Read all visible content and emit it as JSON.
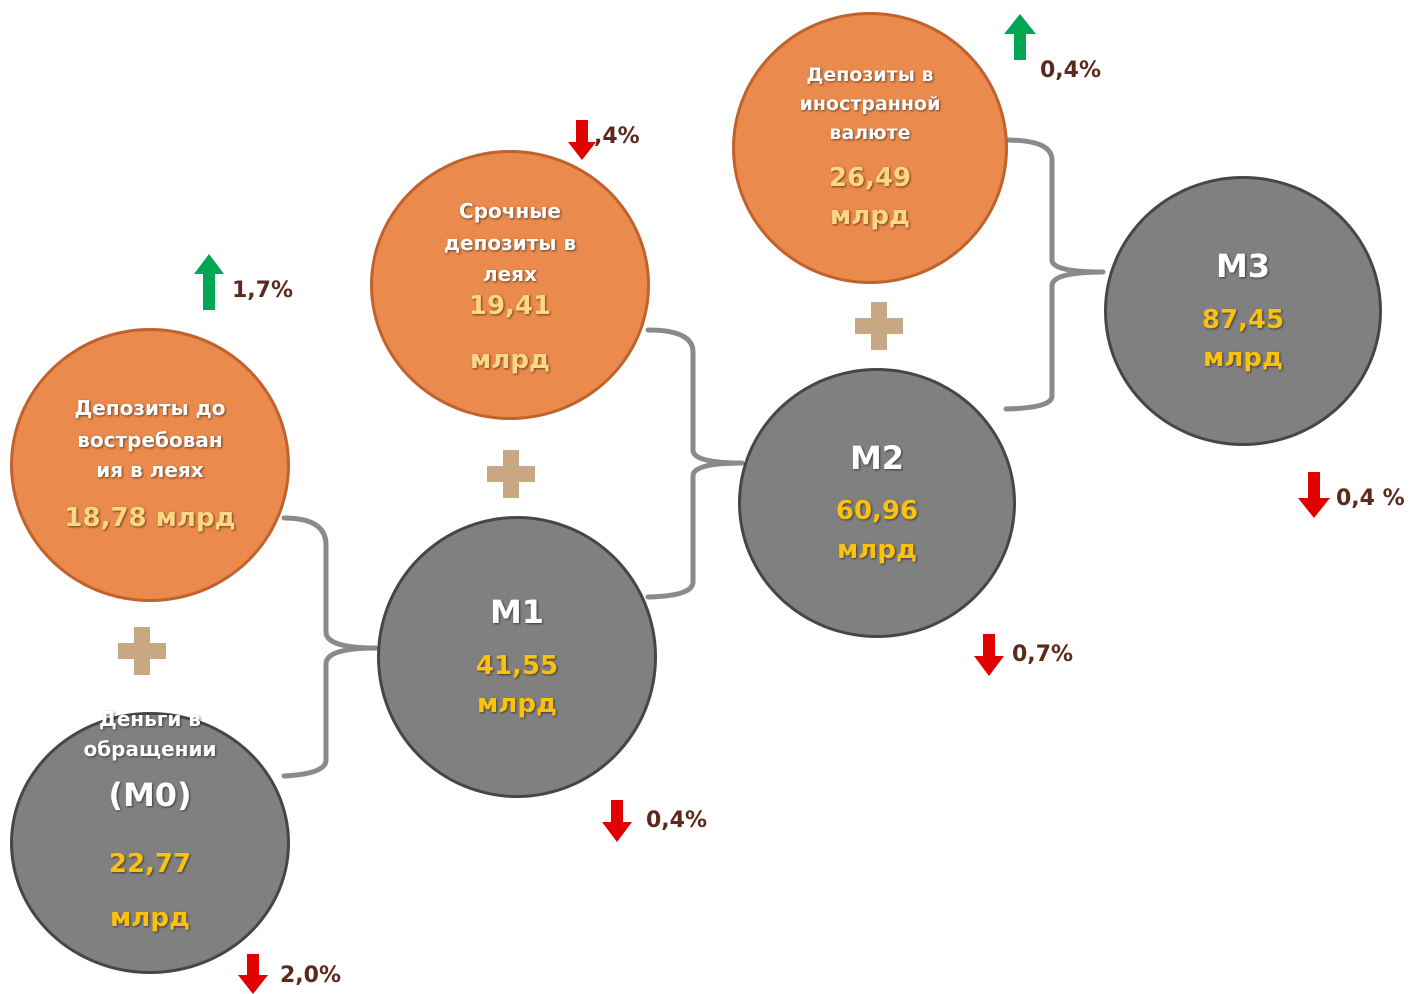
{
  "colors": {
    "orange_fill": "#ea8a4c",
    "orange_border": "#c0622e",
    "gray_fill": "#808080",
    "gray_border": "#464646",
    "value_yellow": "#fcc10f",
    "plus_color": "#c8a883",
    "up_arrow": "#00a651",
    "down_arrow": "#e00000",
    "percent_text": "#5c2a1c",
    "connector": "#8a8a8a"
  },
  "nodes": {
    "demand_deposits": {
      "label_lines": [
        "Депозиты до",
        "востребован",
        "ия в леях"
      ],
      "value_lines": [
        "18,78 млрд"
      ],
      "change": "1,7%",
      "direction": "up",
      "arrow_icon": "arrow-up-icon"
    },
    "m0": {
      "label_lines": [
        "Деньги в",
        "обращении"
      ],
      "title": "(М0)",
      "value_lines": [
        "22,77",
        "млрд"
      ],
      "change": "2,0%",
      "direction": "down",
      "arrow_icon": "arrow-down-icon"
    },
    "term_deposits": {
      "label_lines": [
        "Срочные",
        "депозиты в",
        "леях"
      ],
      "value_lines": [
        "19,41",
        "млрд"
      ],
      "change": ",4%",
      "direction": "down",
      "arrow_icon": "arrow-down-icon"
    },
    "m1": {
      "title": "М1",
      "value_lines": [
        "41,55",
        "млрд"
      ],
      "change": "0,4%",
      "direction": "down",
      "arrow_icon": "arrow-down-icon"
    },
    "foreign_deposits": {
      "label_lines": [
        "Депозиты в",
        "иностранной",
        "валюте"
      ],
      "value_lines": [
        "26,49",
        "млрд"
      ],
      "change": "0,4%",
      "direction": "up",
      "arrow_icon": "arrow-up-icon"
    },
    "m2": {
      "title": "М2",
      "value_lines": [
        "60,96",
        "млрд"
      ],
      "change": "0,7%",
      "direction": "down",
      "arrow_icon": "arrow-down-icon"
    },
    "m3": {
      "title": "М3",
      "value_lines": [
        "87,45",
        "млрд"
      ],
      "change": "0,4 %",
      "direction": "down",
      "arrow_icon": "arrow-down-icon"
    }
  },
  "icons": {
    "plus": "plus-icon",
    "bracket": "bracket-connector"
  }
}
